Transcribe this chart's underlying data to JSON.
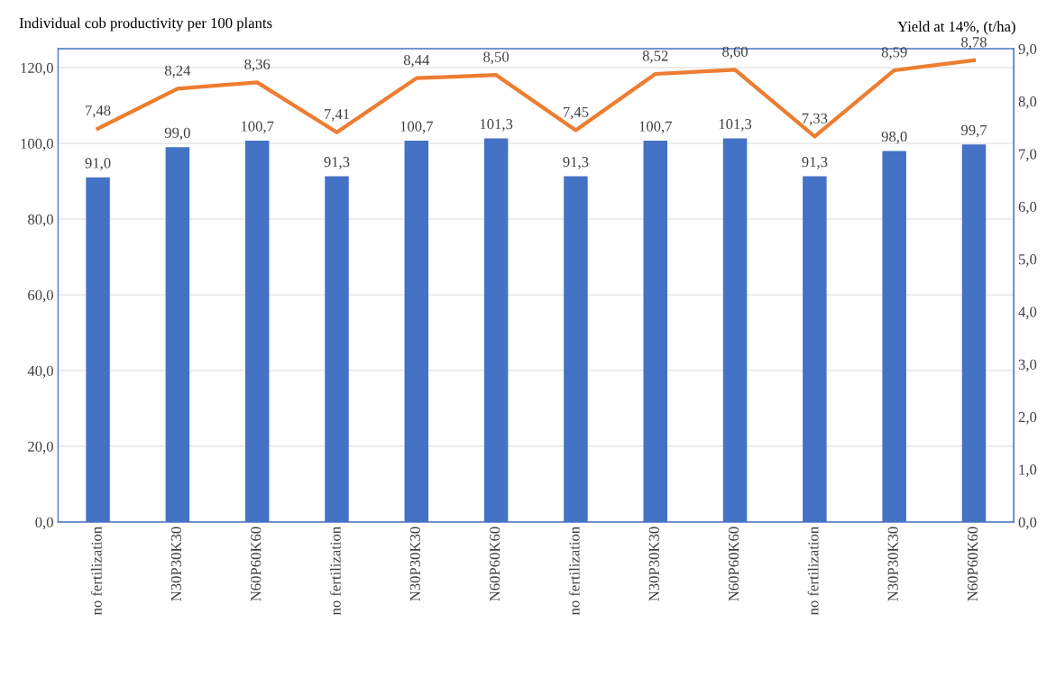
{
  "chart_data": {
    "type": "bar",
    "ylabel": "Individual cob productivity per 100 plants",
    "y2label": "Yield at 14%, (t/ha)",
    "categories": [
      "no fertilization",
      "N30P30K30",
      "N60P60K60",
      "no fertilization",
      "N30P30K30",
      "N60P60K60",
      "no fertilization",
      "N30P30K30",
      "N60P60K60",
      "no fertilization",
      "N30P30K30",
      "N60P60K60"
    ],
    "series": [
      {
        "color": "#4472c4",
        "values": [
          91.0,
          99.0,
          100.7,
          91.3,
          100.7,
          101.3,
          91.3,
          100.7,
          101.3,
          91.3,
          98.0,
          99.7
        ],
        "value_labels": [
          "91,0",
          "99,0",
          "100,7",
          "91,3",
          "100,7",
          "101,3",
          "91,3",
          "100,7",
          "101,3",
          "91,3",
          "98,0",
          "99,7"
        ]
      },
      {
        "type": "line",
        "axis": "y2",
        "color": "#ed7d31",
        "values": [
          7.48,
          8.24,
          8.36,
          7.41,
          8.44,
          8.5,
          7.45,
          8.52,
          8.6,
          7.33,
          8.59,
          8.78
        ],
        "value_labels": [
          "7,48",
          "8,24",
          "8,36",
          "7,41",
          "8,44",
          "8,50",
          "7,45",
          "8,52",
          "8,60",
          "7,33",
          "8,59",
          "8,78"
        ]
      }
    ],
    "ylim": [
      0,
      125
    ],
    "yticks": [
      {
        "value": 0,
        "label": "0,0"
      },
      {
        "value": 20,
        "label": "20,0"
      },
      {
        "value": 40,
        "label": "40,0"
      },
      {
        "value": 60,
        "label": "60,0"
      },
      {
        "value": 80,
        "label": "80,0"
      },
      {
        "value": 100,
        "label": "100,0"
      },
      {
        "value": 120,
        "label": "120,0"
      }
    ],
    "y2lim": [
      0,
      9
    ],
    "y2ticks": [
      {
        "value": 0,
        "label": "0,0"
      },
      {
        "value": 1,
        "label": "1,0"
      },
      {
        "value": 2,
        "label": "2,0"
      },
      {
        "value": 3,
        "label": "3,0"
      },
      {
        "value": 4,
        "label": "4,0"
      },
      {
        "value": 5,
        "label": "5,0"
      },
      {
        "value": 6,
        "label": "6,0"
      },
      {
        "value": 7,
        "label": "7,0"
      },
      {
        "value": 8,
        "label": "8,0"
      },
      {
        "value": 9,
        "label": "9,0"
      }
    ],
    "grid": "y",
    "marker": "none",
    "line_style": "solid"
  }
}
